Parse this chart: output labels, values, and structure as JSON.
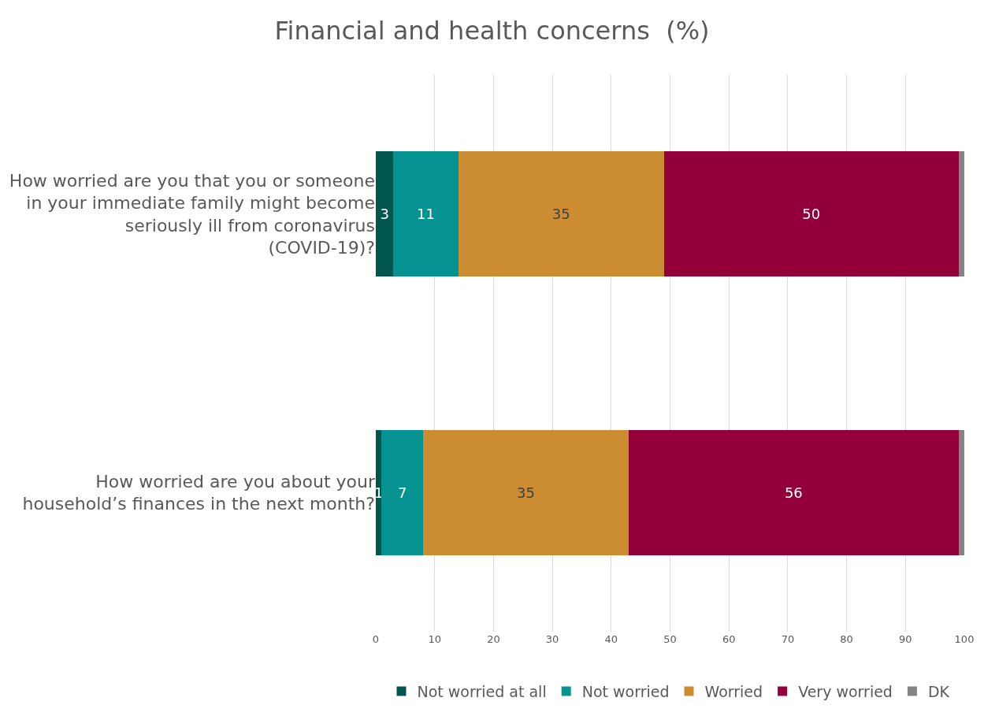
{
  "chart_data": {
    "type": "bar",
    "orientation": "horizontal",
    "stacked": true,
    "title": "Financial and health concerns  (%)",
    "categories": [
      "How worried are you that you or someone in your immediate family might become seriously ill from coronavirus (COVID-19)?",
      "How worried are you about your household’s finances in the next month?"
    ],
    "series": [
      {
        "name": "Not worried at all",
        "color": "#00564f",
        "values": [
          3,
          1
        ],
        "value_labels": [
          "3",
          "1"
        ]
      },
      {
        "name": "Not worried",
        "color": "#069290",
        "values": [
          11,
          7
        ],
        "value_labels": [
          "11",
          "7"
        ]
      },
      {
        "name": "Worried",
        "color": "#cc8c32",
        "values": [
          35,
          35
        ],
        "value_labels": [
          "35",
          "35"
        ]
      },
      {
        "name": "Very worried",
        "color": "#930039",
        "values": [
          50,
          56
        ],
        "value_labels": [
          "50",
          "56"
        ]
      },
      {
        "name": "DK",
        "color": "#848484",
        "values": [
          1,
          1
        ],
        "value_labels": [
          null,
          null
        ]
      }
    ],
    "xlim": [
      0,
      100
    ],
    "xticks": [
      0,
      10,
      20,
      30,
      40,
      50,
      60,
      70,
      80,
      90,
      100
    ],
    "grid": "x",
    "legend": "bottom"
  }
}
